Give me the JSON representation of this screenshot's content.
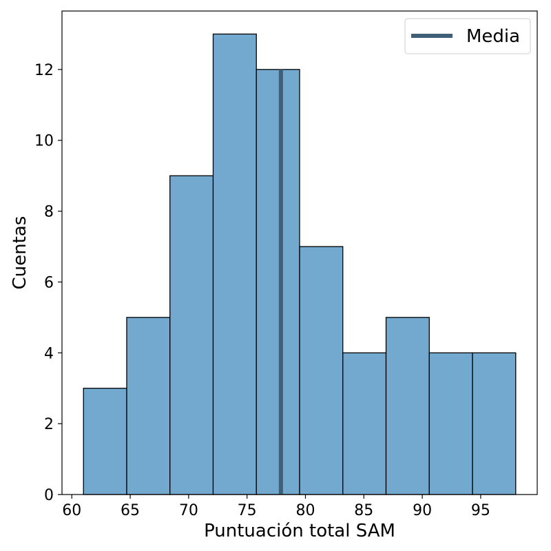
{
  "chart_data": {
    "type": "bar",
    "title": "",
    "xlabel": "Puntuación total SAM",
    "ylabel": "Cuentas",
    "xlim": [
      59.16,
      99.84
    ],
    "ylim": [
      0,
      13.65
    ],
    "x_ticks": [
      60,
      65,
      70,
      75,
      80,
      85,
      90,
      95
    ],
    "y_ticks": [
      0,
      2,
      4,
      6,
      8,
      10,
      12
    ],
    "bins": [
      {
        "x0": 61.0,
        "x1": 64.7,
        "count": 3
      },
      {
        "x0": 64.7,
        "x1": 68.4,
        "count": 5
      },
      {
        "x0": 68.4,
        "x1": 72.1,
        "count": 9
      },
      {
        "x0": 72.1,
        "x1": 75.8,
        "count": 13
      },
      {
        "x0": 75.8,
        "x1": 79.5,
        "count": 12
      },
      {
        "x0": 79.5,
        "x1": 83.2,
        "count": 7
      },
      {
        "x0": 83.2,
        "x1": 86.9,
        "count": 4
      },
      {
        "x0": 86.9,
        "x1": 90.6,
        "count": 5
      },
      {
        "x0": 90.6,
        "x1": 94.3,
        "count": 4
      },
      {
        "x0": 94.3,
        "x1": 98.0,
        "count": 4
      }
    ],
    "mean": {
      "x": 77.9,
      "y_top": 12
    },
    "legend": {
      "entries": [
        "Media"
      ],
      "position": "top-right"
    },
    "colors": {
      "bar_fill": "#73a8cf",
      "bar_edge": "#000000",
      "mean_line": "#3f5f76"
    },
    "grid": false
  }
}
